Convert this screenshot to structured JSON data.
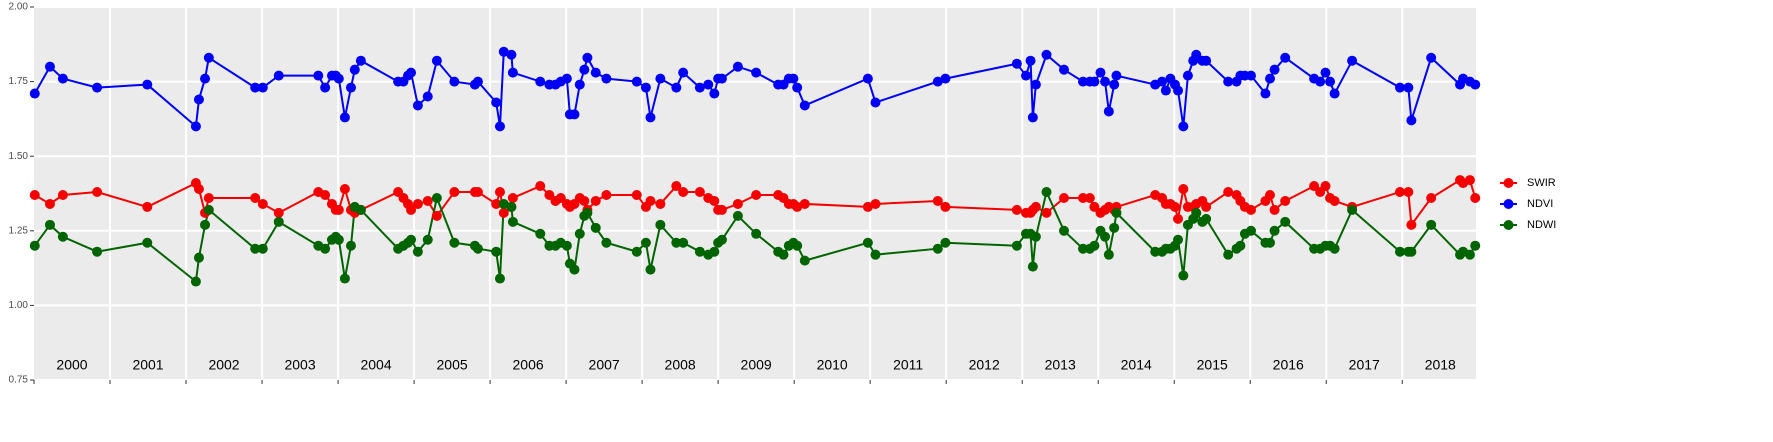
{
  "chart_data": {
    "type": "line",
    "x": [
      2000.01,
      2000.21,
      2000.38,
      2000.83,
      2001.49,
      2002.13,
      2002.17,
      2002.25,
      2002.3,
      2002.91,
      2003.01,
      2003.22,
      2003.74,
      2003.83,
      2003.92,
      2003.97,
      2004.01,
      2004.09,
      2004.17,
      2004.22,
      2004.3,
      2004.79,
      2004.86,
      2004.92,
      2004.96,
      2005.05,
      2005.18,
      2005.3,
      2005.53,
      2005.8,
      2005.84,
      2006.08,
      2006.13,
      2006.18,
      2006.28,
      2006.3,
      2006.66,
      2006.78,
      2006.86,
      2006.93,
      2007.01,
      2007.05,
      2007.11,
      2007.18,
      2007.24,
      2007.28,
      2007.39,
      2007.53,
      2007.93,
      2008.05,
      2008.11,
      2008.24,
      2008.45,
      2008.54,
      2008.76,
      2008.87,
      2008.95,
      2009.0,
      2009.05,
      2009.26,
      2009.5,
      2009.79,
      2009.86,
      2009.93,
      2009.99,
      2010.04,
      2010.14,
      2010.97,
      2011.07,
      2011.89,
      2011.99,
      2012.93,
      2013.05,
      2013.11,
      2013.14,
      2013.18,
      2013.32,
      2013.55,
      2013.8,
      2013.89,
      2013.95,
      2014.03,
      2014.09,
      2014.14,
      2014.21,
      2014.24,
      2014.75,
      2014.84,
      2014.89,
      2014.95,
      2015.01,
      2015.05,
      2015.12,
      2015.18,
      2015.25,
      2015.29,
      2015.37,
      2015.42,
      2015.71,
      2015.82,
      2015.87,
      2015.93,
      2016.01,
      2016.2,
      2016.26,
      2016.32,
      2016.46,
      2016.84,
      2016.92,
      2016.99,
      2017.05,
      2017.11,
      2017.34,
      2017.97,
      2018.08,
      2018.12,
      2018.38,
      2018.76,
      2018.8,
      2018.89,
      2018.96
    ],
    "series": [
      {
        "name": "SWIR",
        "color": "#f50000",
        "values": [
          1.37,
          1.34,
          1.37,
          1.38,
          1.33,
          1.41,
          1.39,
          1.31,
          1.36,
          1.36,
          1.34,
          1.31,
          1.38,
          1.37,
          1.34,
          1.32,
          1.32,
          1.39,
          1.32,
          1.31,
          1.32,
          1.38,
          1.36,
          1.34,
          1.32,
          1.34,
          1.35,
          1.3,
          1.38,
          1.38,
          1.38,
          1.34,
          1.38,
          1.31,
          1.33,
          1.36,
          1.4,
          1.37,
          1.35,
          1.36,
          1.34,
          1.33,
          1.34,
          1.36,
          1.35,
          1.32,
          1.35,
          1.37,
          1.37,
          1.33,
          1.35,
          1.34,
          1.4,
          1.38,
          1.38,
          1.36,
          1.35,
          1.32,
          1.32,
          1.34,
          1.37,
          1.37,
          1.36,
          1.34,
          1.34,
          1.33,
          1.34,
          1.33,
          1.34,
          1.35,
          1.33,
          1.32,
          1.31,
          1.31,
          1.32,
          1.33,
          1.31,
          1.36,
          1.36,
          1.36,
          1.33,
          1.31,
          1.32,
          1.33,
          1.32,
          1.33,
          1.37,
          1.36,
          1.34,
          1.34,
          1.33,
          1.29,
          1.39,
          1.33,
          1.33,
          1.34,
          1.35,
          1.33,
          1.38,
          1.37,
          1.35,
          1.33,
          1.32,
          1.35,
          1.37,
          1.32,
          1.35,
          1.4,
          1.38,
          1.4,
          1.36,
          1.35,
          1.33,
          1.38,
          1.38,
          1.27,
          1.36,
          1.42,
          1.41,
          1.42,
          1.36
        ]
      },
      {
        "name": "NDVI",
        "color": "#0000f5",
        "values": [
          1.71,
          1.8,
          1.76,
          1.73,
          1.74,
          1.6,
          1.69,
          1.76,
          1.83,
          1.73,
          1.73,
          1.77,
          1.77,
          1.73,
          1.77,
          1.77,
          1.76,
          1.63,
          1.73,
          1.79,
          1.82,
          1.75,
          1.75,
          1.77,
          1.78,
          1.67,
          1.7,
          1.82,
          1.75,
          1.74,
          1.75,
          1.68,
          1.6,
          1.85,
          1.84,
          1.78,
          1.75,
          1.74,
          1.74,
          1.75,
          1.76,
          1.64,
          1.64,
          1.74,
          1.79,
          1.83,
          1.78,
          1.76,
          1.75,
          1.73,
          1.63,
          1.76,
          1.73,
          1.78,
          1.73,
          1.74,
          1.71,
          1.76,
          1.76,
          1.8,
          1.78,
          1.74,
          1.74,
          1.76,
          1.76,
          1.73,
          1.67,
          1.76,
          1.68,
          1.75,
          1.76,
          1.81,
          1.77,
          1.82,
          1.63,
          1.74,
          1.84,
          1.79,
          1.75,
          1.75,
          1.75,
          1.78,
          1.75,
          1.65,
          1.74,
          1.77,
          1.74,
          1.75,
          1.72,
          1.76,
          1.74,
          1.72,
          1.6,
          1.77,
          1.82,
          1.84,
          1.82,
          1.82,
          1.75,
          1.75,
          1.77,
          1.77,
          1.77,
          1.71,
          1.76,
          1.79,
          1.83,
          1.76,
          1.75,
          1.78,
          1.75,
          1.71,
          1.82,
          1.73,
          1.73,
          1.62,
          1.83,
          1.74,
          1.76,
          1.75,
          1.74
        ]
      },
      {
        "name": "NDWI",
        "color": "#006400",
        "values": [
          1.2,
          1.27,
          1.23,
          1.18,
          1.21,
          1.08,
          1.16,
          1.27,
          1.32,
          1.19,
          1.19,
          1.28,
          1.2,
          1.19,
          1.22,
          1.23,
          1.22,
          1.09,
          1.2,
          1.33,
          1.32,
          1.19,
          1.2,
          1.21,
          1.22,
          1.18,
          1.22,
          1.36,
          1.21,
          1.2,
          1.19,
          1.18,
          1.09,
          1.34,
          1.33,
          1.28,
          1.24,
          1.2,
          1.2,
          1.21,
          1.2,
          1.14,
          1.12,
          1.24,
          1.3,
          1.31,
          1.26,
          1.21,
          1.18,
          1.21,
          1.12,
          1.27,
          1.21,
          1.21,
          1.18,
          1.17,
          1.18,
          1.21,
          1.22,
          1.3,
          1.24,
          1.18,
          1.17,
          1.2,
          1.21,
          1.2,
          1.15,
          1.21,
          1.17,
          1.19,
          1.21,
          1.2,
          1.24,
          1.24,
          1.13,
          1.23,
          1.38,
          1.25,
          1.19,
          1.19,
          1.2,
          1.25,
          1.23,
          1.17,
          1.26,
          1.31,
          1.18,
          1.18,
          1.19,
          1.19,
          1.2,
          1.22,
          1.1,
          1.27,
          1.29,
          1.31,
          1.28,
          1.29,
          1.17,
          1.19,
          1.2,
          1.24,
          1.25,
          1.21,
          1.21,
          1.25,
          1.28,
          1.19,
          1.19,
          1.2,
          1.2,
          1.19,
          1.32,
          1.18,
          1.18,
          1.18,
          1.27,
          1.17,
          1.18,
          1.17,
          1.2
        ]
      }
    ],
    "xlim": [
      2000,
      2018.97
    ],
    "xticks": [
      2000,
      2001,
      2002,
      2003,
      2004,
      2005,
      2006,
      2007,
      2008,
      2009,
      2010,
      2011,
      2012,
      2013,
      2014,
      2015,
      2016,
      2017,
      2018
    ],
    "ylim": [
      0.75,
      2.0
    ],
    "yticks": [
      {
        "value": 0.75,
        "label": "0.75"
      },
      {
        "value": 1.0,
        "label": "1.00"
      },
      {
        "value": 1.25,
        "label": "1.25"
      },
      {
        "value": 1.5,
        "label": "1.50"
      },
      {
        "value": 1.75,
        "label": "1.75"
      },
      {
        "value": 2.0,
        "label": "2.00"
      }
    ],
    "grid": true,
    "legend": "right"
  }
}
